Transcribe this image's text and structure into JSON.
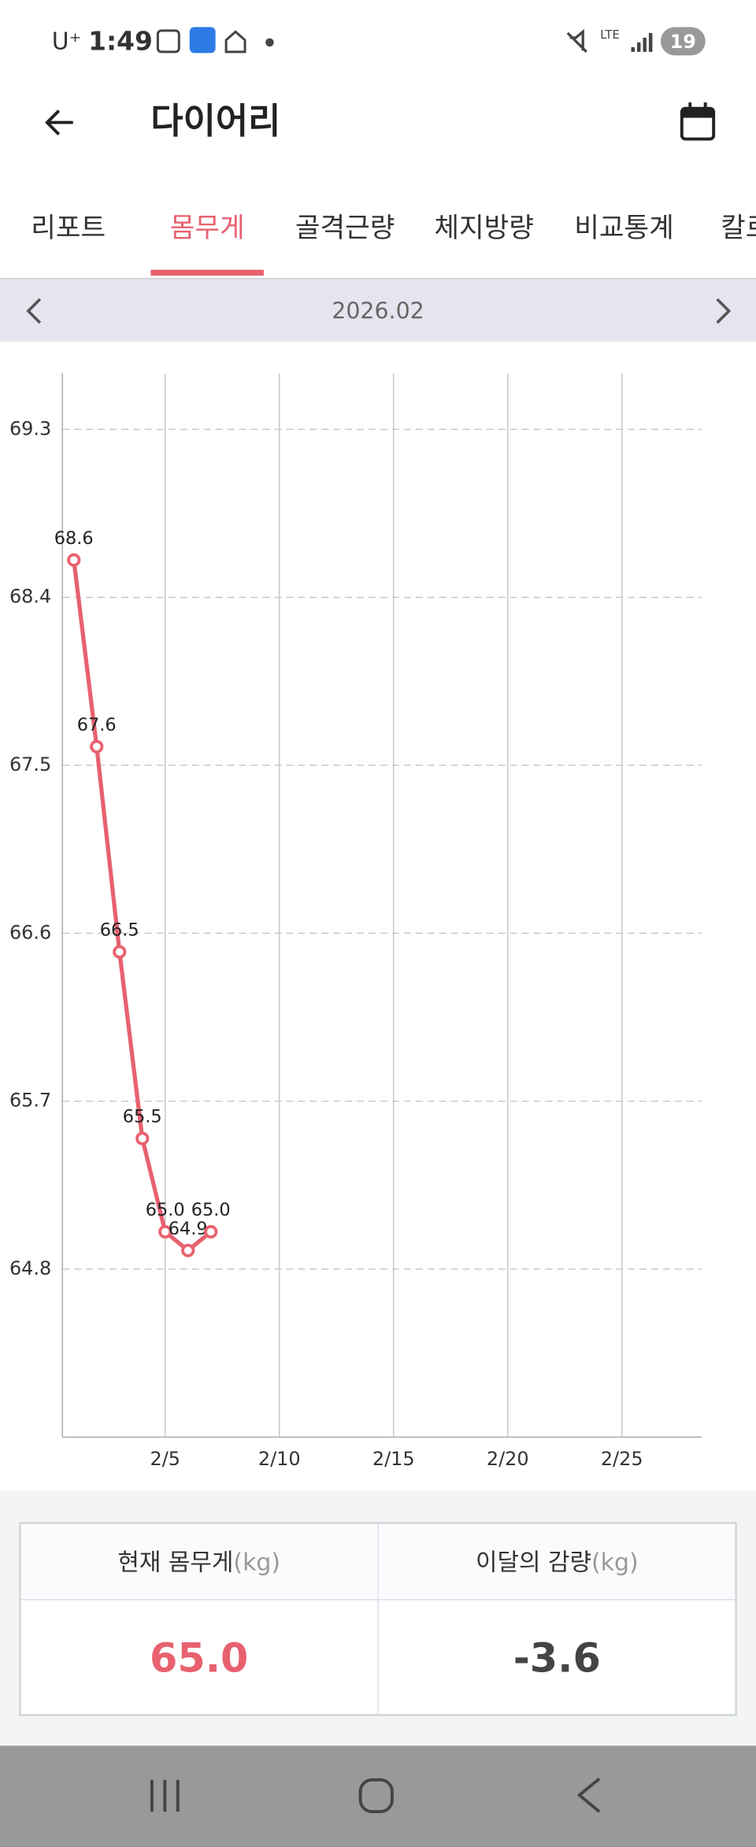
{
  "status_bar": {
    "carrier": "U⁺",
    "time": "1:49",
    "network": "LTE",
    "battery": "19"
  },
  "header": {
    "title": "다이어리"
  },
  "tabs": [
    "리포트",
    "몸무게",
    "골격근량",
    "체지방량",
    "비교통계",
    "칼로리"
  ],
  "active_tab": 1,
  "month_nav": {
    "label": "2026.02"
  },
  "chart_data": {
    "type": "line",
    "x": [
      1,
      2,
      3,
      4,
      5,
      6,
      7
    ],
    "series": [
      {
        "color": "#e8616f",
        "values": [
          68.6,
          67.6,
          66.5,
          65.5,
          65.0,
          64.9,
          65.0
        ],
        "value_labels": [
          "68.6",
          "67.6",
          "66.5",
          "65.5",
          "65.0",
          "64.9",
          "65.0"
        ]
      }
    ],
    "xlim": [
      0.5,
      28.5
    ],
    "xticks": [
      {
        "value": 5,
        "label": "2/5"
      },
      {
        "value": 10,
        "label": "2/10"
      },
      {
        "value": 15,
        "label": "2/15"
      },
      {
        "value": 20,
        "label": "2/20"
      },
      {
        "value": 25,
        "label": "2/25"
      }
    ],
    "ylim": [
      63.9,
      69.6
    ],
    "yticks": [
      64.8,
      65.7,
      66.6,
      67.5,
      68.4,
      69.3
    ],
    "grid": true
  },
  "summary": {
    "headers": [
      "현재 몸무게",
      "이달의 감량"
    ],
    "unit": "(kg)",
    "values": [
      "65.0",
      "-3.6"
    ]
  }
}
